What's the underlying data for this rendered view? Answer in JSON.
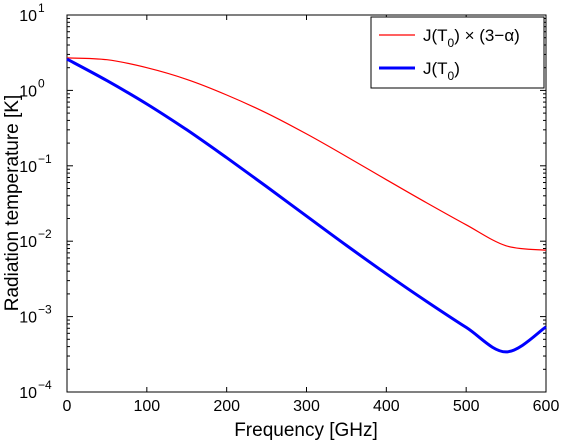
{
  "chart_data": {
    "type": "line",
    "title": "",
    "xlabel": "Frequency [GHz]",
    "ylabel": "Radiation temperature [K]",
    "xlim": [
      0,
      600
    ],
    "ylim": [
      0.0001,
      10
    ],
    "yscale": "log",
    "grid": false,
    "legend_position": "top-right",
    "x_ticks": [
      "0",
      "100",
      "200",
      "300",
      "400",
      "500",
      "600"
    ],
    "y_ticks": [
      {
        "value": 0.0001,
        "base": "10",
        "exp": "−4"
      },
      {
        "value": 0.001,
        "base": "10",
        "exp": "−3"
      },
      {
        "value": 0.01,
        "base": "10",
        "exp": "−2"
      },
      {
        "value": 0.1,
        "base": "10",
        "exp": "−1"
      },
      {
        "value": 1,
        "base": "10",
        "exp": "0"
      },
      {
        "value": 10,
        "base": "10",
        "exp": "1"
      }
    ],
    "legend": [
      {
        "prefix": "J(T",
        "sub": "0",
        "suffix": ") × (3−α)"
      },
      {
        "prefix": "J(T",
        "sub": "0",
        "suffix": ")"
      }
    ],
    "x": [
      0,
      50,
      100,
      150,
      200,
      250,
      300,
      350,
      400,
      450,
      500,
      550,
      600
    ],
    "series": [
      {
        "color": "#ff0000",
        "width": 1.2,
        "values": [
          2.7,
          2.55,
          2.0,
          1.4,
          0.87,
          0.5,
          0.265,
          0.133,
          0.0655,
          0.0325,
          0.0165,
          0.0087,
          0.0076
        ]
      },
      {
        "color": "#0000ff",
        "width": 3,
        "values": [
          2.6,
          1.35,
          0.66,
          0.3,
          0.128,
          0.053,
          0.0215,
          0.0088,
          0.0037,
          0.0016,
          0.00072,
          0.00034,
          0.00073
        ]
      }
    ]
  }
}
